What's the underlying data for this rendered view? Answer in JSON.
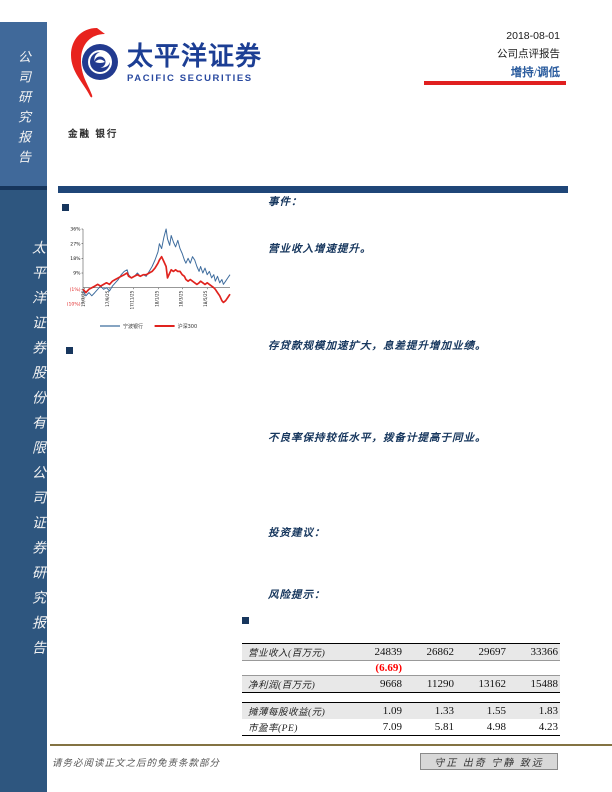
{
  "sidebar": {
    "top_label": "公司研究报告",
    "bottom_label": "太平洋证券股份有限公司证券研究报告"
  },
  "header": {
    "brand_cn": "太平洋证券",
    "brand_en": "PACIFIC SECURITIES",
    "date": "2018-08-01",
    "report_type": "公司点评报告",
    "rating": "增持/调低",
    "accent_red": "#e01f1f",
    "brand_blue": "#1c3e94"
  },
  "industry": {
    "text": "金融 银行"
  },
  "sections": [
    {
      "text": "事件："
    },
    {
      "text": "营业收入增速提升。"
    },
    {
      "text": "存贷款规模加速扩大，息差提升增加业绩。"
    },
    {
      "text": "不良率保持较低水平，拨备计提高于同业。"
    },
    {
      "text": "投资建议："
    },
    {
      "text": "风险提示："
    }
  ],
  "chart_data": {
    "type": "line",
    "title": "",
    "xlabel": "",
    "ylabel": "",
    "ylim": [
      -10,
      36
    ],
    "grid": false,
    "legend_position": "bottom",
    "y_ticks": [
      "36%",
      "27%",
      "18%",
      "9%",
      "(1%)",
      "(10%)"
    ],
    "y_tick_values": [
      36,
      27,
      18,
      9,
      -1,
      -10
    ],
    "x_tick_labels": [
      "17/7/25",
      "17/9/25",
      "17/11/25",
      "18/1/25",
      "18/3/25",
      "18/5/25"
    ],
    "x_tick_positions": [
      0.012,
      0.178,
      0.345,
      0.512,
      0.678,
      0.845
    ],
    "negative_tick_color": "#e02a2a",
    "series": [
      {
        "name": "宁波银行",
        "color": "#3f6d9e",
        "width": 1.0,
        "points": [
          [
            0,
            -2
          ],
          [
            0.02,
            -5
          ],
          [
            0.04,
            -3
          ],
          [
            0.06,
            -5
          ],
          [
            0.08,
            -3
          ],
          [
            0.1,
            -1
          ],
          [
            0.12,
            1
          ],
          [
            0.14,
            -1
          ],
          [
            0.16,
            0
          ],
          [
            0.18,
            -2
          ],
          [
            0.2,
            1
          ],
          [
            0.22,
            3
          ],
          [
            0.24,
            5
          ],
          [
            0.26,
            8
          ],
          [
            0.28,
            10
          ],
          [
            0.3,
            11
          ],
          [
            0.31,
            8
          ],
          [
            0.33,
            6
          ],
          [
            0.35,
            7
          ],
          [
            0.37,
            9
          ],
          [
            0.39,
            7
          ],
          [
            0.41,
            8
          ],
          [
            0.43,
            7
          ],
          [
            0.45,
            10
          ],
          [
            0.47,
            13
          ],
          [
            0.49,
            17
          ],
          [
            0.51,
            22
          ],
          [
            0.52,
            27
          ],
          [
            0.535,
            24
          ],
          [
            0.55,
            31
          ],
          [
            0.565,
            36
          ],
          [
            0.575,
            30
          ],
          [
            0.59,
            26
          ],
          [
            0.6,
            32
          ],
          [
            0.615,
            28
          ],
          [
            0.63,
            25
          ],
          [
            0.645,
            29
          ],
          [
            0.66,
            24
          ],
          [
            0.675,
            21
          ],
          [
            0.69,
            17
          ],
          [
            0.7,
            15
          ],
          [
            0.715,
            18
          ],
          [
            0.73,
            15
          ],
          [
            0.745,
            19
          ],
          [
            0.76,
            17
          ],
          [
            0.775,
            13
          ],
          [
            0.79,
            10
          ],
          [
            0.8,
            13
          ],
          [
            0.815,
            9
          ],
          [
            0.83,
            12
          ],
          [
            0.845,
            8
          ],
          [
            0.86,
            10
          ],
          [
            0.875,
            6
          ],
          [
            0.89,
            8
          ],
          [
            0.9,
            4
          ],
          [
            0.915,
            7
          ],
          [
            0.93,
            3
          ],
          [
            0.945,
            5
          ],
          [
            0.955,
            2
          ],
          [
            0.97,
            4
          ],
          [
            0.985,
            6
          ],
          [
            1,
            8
          ]
        ]
      },
      {
        "name": "沪深300",
        "color": "#e0231e",
        "width": 1.7,
        "points": [
          [
            0,
            -1
          ],
          [
            0.02,
            -3
          ],
          [
            0.04,
            -1
          ],
          [
            0.06,
            0
          ],
          [
            0.08,
            1
          ],
          [
            0.1,
            2
          ],
          [
            0.12,
            1
          ],
          [
            0.14,
            2
          ],
          [
            0.16,
            3
          ],
          [
            0.18,
            2
          ],
          [
            0.2,
            4
          ],
          [
            0.22,
            5
          ],
          [
            0.24,
            6
          ],
          [
            0.26,
            7
          ],
          [
            0.28,
            8
          ],
          [
            0.3,
            9
          ],
          [
            0.31,
            7
          ],
          [
            0.33,
            6
          ],
          [
            0.35,
            7
          ],
          [
            0.37,
            8
          ],
          [
            0.39,
            7
          ],
          [
            0.41,
            8
          ],
          [
            0.43,
            8
          ],
          [
            0.45,
            9
          ],
          [
            0.47,
            10
          ],
          [
            0.49,
            12
          ],
          [
            0.51,
            15
          ],
          [
            0.52,
            17
          ],
          [
            0.535,
            19
          ],
          [
            0.55,
            16
          ],
          [
            0.565,
            13
          ],
          [
            0.575,
            6
          ],
          [
            0.59,
            9
          ],
          [
            0.6,
            11
          ],
          [
            0.615,
            10
          ],
          [
            0.63,
            11
          ],
          [
            0.645,
            10
          ],
          [
            0.66,
            10
          ],
          [
            0.675,
            8
          ],
          [
            0.69,
            7
          ],
          [
            0.7,
            5
          ],
          [
            0.715,
            4
          ],
          [
            0.73,
            5
          ],
          [
            0.745,
            4
          ],
          [
            0.76,
            3
          ],
          [
            0.775,
            2
          ],
          [
            0.79,
            3
          ],
          [
            0.8,
            4
          ],
          [
            0.815,
            3
          ],
          [
            0.83,
            2
          ],
          [
            0.845,
            3
          ],
          [
            0.86,
            2
          ],
          [
            0.875,
            1
          ],
          [
            0.89,
            0
          ],
          [
            0.9,
            -1
          ],
          [
            0.915,
            -3
          ],
          [
            0.93,
            -5
          ],
          [
            0.945,
            -8
          ],
          [
            0.955,
            -9
          ],
          [
            0.97,
            -8
          ],
          [
            0.985,
            -6
          ],
          [
            1,
            -4
          ]
        ]
      }
    ]
  },
  "table": {
    "rows": [
      {
        "label": "营业收入(百万元)",
        "values": [
          "24839",
          "26862",
          "29697",
          "33366"
        ],
        "shaded": true,
        "border_top": true
      },
      {
        "label": "",
        "values": [
          "(6.69)",
          "",
          "",
          ""
        ],
        "red": true,
        "hairline": true
      },
      {
        "label": "净利润(百万元)",
        "values": [
          "9668",
          "11290",
          "13162",
          "15488"
        ],
        "shaded": true,
        "border_bottom": true,
        "hairline": true
      },
      {
        "label": "",
        "values": [
          "",
          "",
          "",
          ""
        ],
        "spacer": true
      },
      {
        "label": "摊薄每股收益(元)",
        "values": [
          "1.09",
          "1.33",
          "1.55",
          "1.83"
        ],
        "shaded": true,
        "border_top": true
      },
      {
        "label": "市盈率(PE)",
        "values": [
          "7.09",
          "5.81",
          "4.98",
          "4.23"
        ],
        "border_bottom": true
      }
    ]
  },
  "footer": {
    "disclaimer": "请务必阅读正文之后的免责条款部分",
    "motto": "守正 出奇 宁静 致远",
    "line_color": "#837343"
  }
}
